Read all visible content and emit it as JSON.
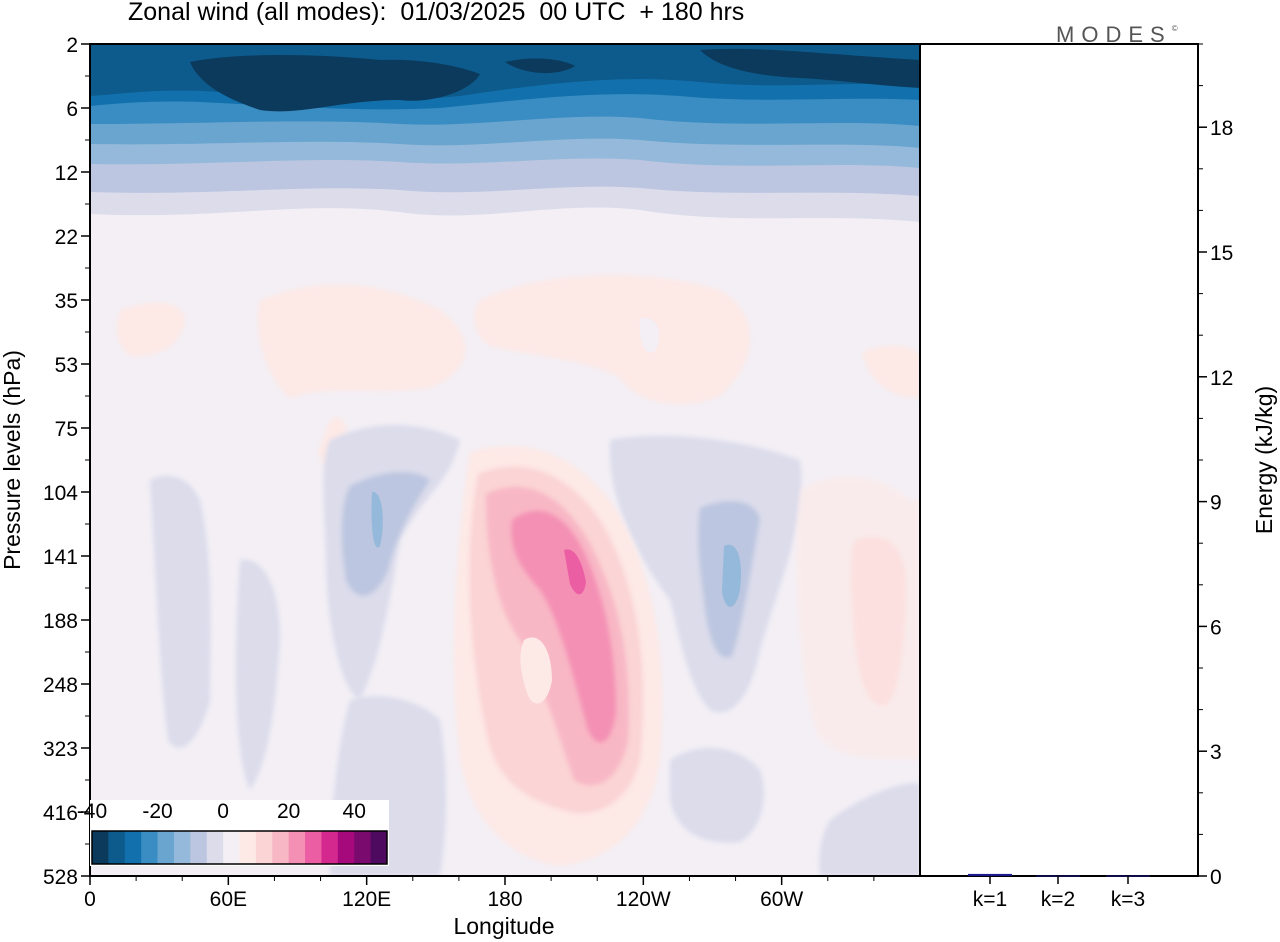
{
  "header": {
    "title": "Zonal wind (all modes):  01/03/2025  00 UTC  + 180 hrs",
    "brand": "MODES",
    "brand_mark": "©"
  },
  "chart_data": [
    {
      "type": "heatmap",
      "title": "Zonal wind (all modes):  01/03/2025  00 UTC  + 180 hrs",
      "xlabel": "Longitude",
      "ylabel": "Pressure levels (hPa)",
      "x_ticks": [
        "0",
        "60E",
        "120E",
        "180",
        "120W",
        "60W"
      ],
      "x_tick_degrees": [
        0,
        60,
        120,
        180,
        240,
        300
      ],
      "xlim": [
        0,
        360
      ],
      "y_ticks": [
        "2",
        "6",
        "12",
        "22",
        "35",
        "53",
        "75",
        "104",
        "141",
        "188",
        "248",
        "323",
        "416",
        "528"
      ],
      "y_scale": "model levels (pressure decreasing upward)",
      "colorbar": {
        "labels": [
          "-40",
          "-20",
          "0",
          "20",
          "40"
        ],
        "levels": [
          -40,
          -35,
          -30,
          -25,
          -20,
          -15,
          -10,
          -5,
          0,
          5,
          10,
          15,
          20,
          25,
          30,
          35,
          40,
          45
        ],
        "colors": [
          "#0b3a5c",
          "#0d5a8c",
          "#1271ad",
          "#3a8dc2",
          "#6aa5cf",
          "#95b9da",
          "#bcc6e0",
          "#dcdceb",
          "#f3eff5",
          "#fde9e6",
          "#fbd4d5",
          "#f8b7c5",
          "#f490b4",
          "#ec5ea3",
          "#d5288f",
          "#a6097b",
          "#7b0a6e",
          "#4d0a5e"
        ]
      },
      "fields": [
        {
          "region": "upper stratosphere",
          "levels": "2-6",
          "value": -40
        },
        {
          "region": "stratosphere",
          "levels": "6-12",
          "value": -30
        },
        {
          "region": "stratosphere",
          "levels": "12-22",
          "value": -15
        },
        {
          "region": "lower stratosphere",
          "levels": "22-75",
          "value": 5
        },
        {
          "region": "jet core near 160W",
          "levels": "104-323",
          "value": 30
        },
        {
          "region": "easterly cell near 135E",
          "levels": "75-248",
          "value": -15
        },
        {
          "region": "easterly cell near 80W",
          "levels": "104-248",
          "value": -15
        }
      ]
    },
    {
      "type": "bar",
      "categories": [
        "k=1",
        "k=2",
        "k=3"
      ],
      "values": [
        0.05,
        0.01,
        0.01
      ],
      "ylabel": "Energy (kJ/kg)",
      "y_ticks": [
        "0",
        "3",
        "6",
        "9",
        "12",
        "15",
        "18"
      ],
      "ylim": [
        0,
        20
      ],
      "bar_color": "#1a1a8c"
    }
  ]
}
